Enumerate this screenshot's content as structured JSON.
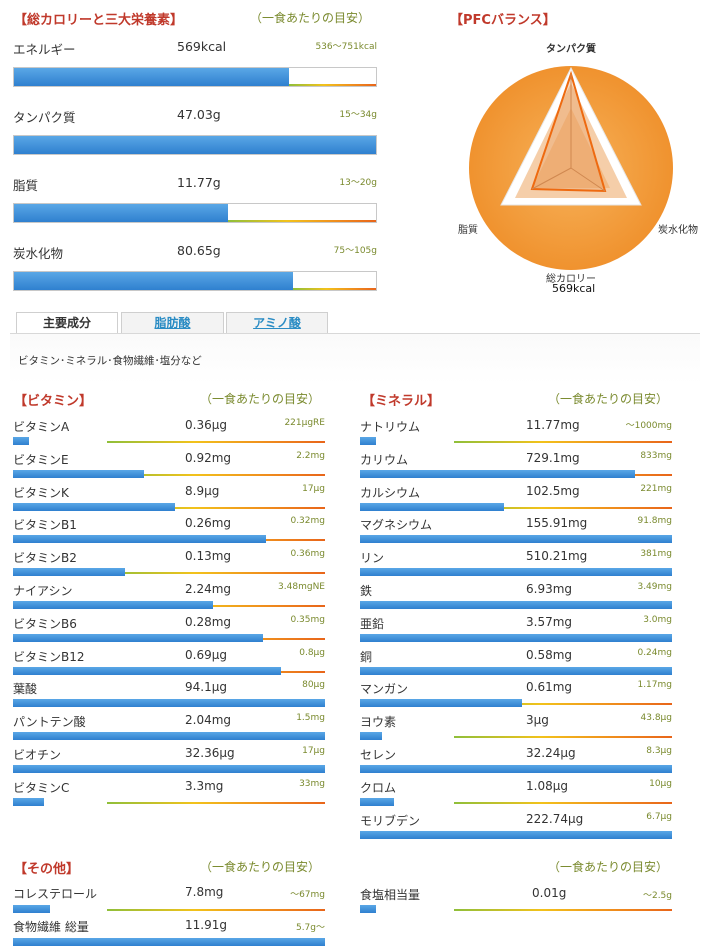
{
  "colors": {
    "section_title": "#c0392b",
    "note": "#7a8a2e",
    "bar_blue": "#2f80cf",
    "bar_orange": "#e8651a",
    "link": "#2a8cc4"
  },
  "macros": {
    "title": "【総カロリーと三大栄養素】",
    "note": "（一食あたりの目安）",
    "items": [
      {
        "name": "エネルギー",
        "value": "569kcal",
        "ref": "536〜751kcal",
        "level": 0.76,
        "ideal_from": 0.76,
        "ideal_to": 1.0
      },
      {
        "name": "タンパク質",
        "value": "47.03g",
        "ref": "15〜34g",
        "level": 1.0,
        "ideal_from": 0.3,
        "ideal_to": 0.7
      },
      {
        "name": "脂質",
        "value": "11.77g",
        "ref": "13〜20g",
        "level": 0.59,
        "ideal_from": 0.59,
        "ideal_to": 1.0
      },
      {
        "name": "炭水化物",
        "value": "80.65g",
        "ref": "75〜105g",
        "level": 0.77,
        "ideal_from": 0.77,
        "ideal_to": 1.0
      }
    ]
  },
  "pfc": {
    "title": "【PFCバランス】",
    "labels": {
      "top": "タンパク質",
      "right": "炭水化物",
      "left": "脂質",
      "bottom": "総カロリー"
    },
    "total": "569kcal"
  },
  "tabs": {
    "items": [
      {
        "label": "主要成分",
        "active": true
      },
      {
        "label": "脂肪酸",
        "active": false
      },
      {
        "label": "アミノ酸",
        "active": false
      }
    ],
    "description": "ビタミン･ミネラル･食物繊維･塩分など"
  },
  "vitamins": {
    "title": "【ビタミン】",
    "note": "（一食あたりの目安）",
    "items": [
      {
        "name": "ビタミンA",
        "value": "0.36μg",
        "ref": "221μgRE",
        "level": 0.05
      },
      {
        "name": "ビタミンE",
        "value": "0.92mg",
        "ref": "2.2mg",
        "level": 0.42
      },
      {
        "name": "ビタミンK",
        "value": "8.9μg",
        "ref": "17μg",
        "level": 0.52
      },
      {
        "name": "ビタミンB1",
        "value": "0.26mg",
        "ref": "0.32mg",
        "level": 0.81
      },
      {
        "name": "ビタミンB2",
        "value": "0.13mg",
        "ref": "0.36mg",
        "level": 0.36
      },
      {
        "name": "ナイアシン",
        "value": "2.24mg",
        "ref": "3.48mgNE",
        "level": 0.64
      },
      {
        "name": "ビタミンB6",
        "value": "0.28mg",
        "ref": "0.35mg",
        "level": 0.8
      },
      {
        "name": "ビタミンB12",
        "value": "0.69μg",
        "ref": "0.8μg",
        "level": 0.86
      },
      {
        "name": "葉酸",
        "value": "94.1μg",
        "ref": "80μg",
        "level": 1.0
      },
      {
        "name": "パントテン酸",
        "value": "2.04mg",
        "ref": "1.5mg",
        "level": 1.0
      },
      {
        "name": "ビオチン",
        "value": "32.36μg",
        "ref": "17μg",
        "level": 1.0
      },
      {
        "name": "ビタミンC",
        "value": "3.3mg",
        "ref": "33mg",
        "level": 0.1
      }
    ]
  },
  "minerals": {
    "title": "【ミネラル】",
    "note": "（一食あたりの目安）",
    "items": [
      {
        "name": "ナトリウム",
        "value": "11.77mg",
        "ref": "〜1000mg",
        "level": 0.05
      },
      {
        "name": "カリウム",
        "value": "729.1mg",
        "ref": "833mg",
        "level": 0.88
      },
      {
        "name": "カルシウム",
        "value": "102.5mg",
        "ref": "221mg",
        "level": 0.46
      },
      {
        "name": "マグネシウム",
        "value": "155.91mg",
        "ref": "91.8mg",
        "level": 1.0
      },
      {
        "name": "リン",
        "value": "510.21mg",
        "ref": "381mg",
        "level": 1.0
      },
      {
        "name": "鉄",
        "value": "6.93mg",
        "ref": "3.49mg",
        "level": 1.0
      },
      {
        "name": "亜鉛",
        "value": "3.57mg",
        "ref": "3.0mg",
        "level": 1.0
      },
      {
        "name": "銅",
        "value": "0.58mg",
        "ref": "0.24mg",
        "level": 1.0
      },
      {
        "name": "マンガン",
        "value": "0.61mg",
        "ref": "1.17mg",
        "level": 0.52
      },
      {
        "name": "ヨウ素",
        "value": "3μg",
        "ref": "43.8μg",
        "level": 0.07
      },
      {
        "name": "セレン",
        "value": "32.24μg",
        "ref": "8.3μg",
        "level": 1.0
      },
      {
        "name": "クロム",
        "value": "1.08μg",
        "ref": "10μg",
        "level": 0.11
      },
      {
        "name": "モリブデン",
        "value": "222.74μg",
        "ref": "6.7μg",
        "level": 1.0
      }
    ]
  },
  "others": {
    "title": "【その他】",
    "note": "（一食あたりの目安）",
    "items": [
      {
        "name": "コレステロール",
        "value": "7.8mg",
        "ref": "〜67mg",
        "level": 0.12
      },
      {
        "name": "食物繊維 総量",
        "value": "11.91g",
        "ref": "5.7g〜",
        "level": 1.0
      }
    ]
  },
  "salt": {
    "note": "（一食あたりの目安）",
    "items": [
      {
        "name": "食塩相当量",
        "value": "0.01g",
        "ref": "〜2.5g",
        "level": 0.05
      }
    ]
  }
}
